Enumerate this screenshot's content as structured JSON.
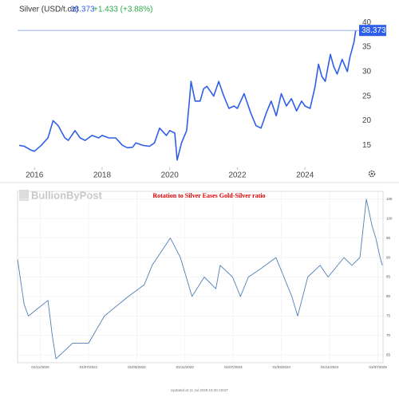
{
  "chart_data": [
    {
      "type": "line",
      "title": "Silver (USD/t.oz)",
      "change_label": "+1.433 (+3.88%)",
      "x": [
        2015.55,
        2015.7,
        2015.9,
        2016.0,
        2016.2,
        2016.4,
        2016.55,
        2016.7,
        2016.9,
        2017.0,
        2017.2,
        2017.35,
        2017.5,
        2017.7,
        2017.9,
        2018.0,
        2018.2,
        2018.4,
        2018.6,
        2018.75,
        2018.9,
        2019.0,
        2019.2,
        2019.4,
        2019.55,
        2019.7,
        2019.9,
        2020.0,
        2020.15,
        2020.22,
        2020.35,
        2020.5,
        2020.58,
        2020.63,
        2020.75,
        2020.9,
        2021.0,
        2021.1,
        2021.3,
        2021.45,
        2021.6,
        2021.75,
        2021.9,
        2022.0,
        2022.2,
        2022.4,
        2022.55,
        2022.7,
        2022.85,
        2023.0,
        2023.15,
        2023.3,
        2023.45,
        2023.6,
        2023.75,
        2023.9,
        2024.0,
        2024.15,
        2024.3,
        2024.4,
        2024.5,
        2024.6,
        2024.75,
        2024.85,
        2024.95,
        2025.1,
        2025.25,
        2025.33,
        2025.45,
        2025.5
      ],
      "series": [
        {
          "name": "Silver",
          "color": "#2f5fe8",
          "values": [
            15,
            14.8,
            14,
            13.8,
            15,
            16.5,
            20,
            19,
            16.5,
            16,
            18,
            16.5,
            16,
            17,
            16.5,
            17,
            16.5,
            16.5,
            15,
            14.5,
            14.6,
            15.5,
            15,
            14.8,
            15.5,
            18.5,
            17,
            18,
            17.5,
            12,
            15.5,
            18,
            24,
            28,
            24,
            24,
            26.5,
            27,
            25,
            28,
            25,
            22.5,
            23,
            22.5,
            25.5,
            21.5,
            19,
            18.5,
            21.5,
            24,
            21,
            25.5,
            23,
            24.5,
            22,
            24,
            23,
            22.5,
            27,
            31.5,
            29,
            28,
            33.5,
            31,
            29.5,
            32.5,
            30,
            33,
            36,
            38.373
          ]
        }
      ],
      "xlim": [
        2015.5,
        2025.6
      ],
      "xticks": [
        2016,
        2018,
        2020,
        2022,
        2024
      ],
      "ylim": [
        10.5,
        41
      ],
      "yticks": [
        15,
        20,
        25,
        30,
        35,
        40
      ],
      "grid": false
    },
    {
      "type": "line",
      "title": "Rotation to Silver Eases Gold-Silver ratio",
      "logo": "BullionByPost",
      "footer": "Updated at 11 Jul 2025 15:30 CEST",
      "x": [
        2020.52,
        2020.61,
        2020.67,
        2020.94,
        2021.0,
        2021.05,
        2021.28,
        2021.5,
        2021.72,
        2022.05,
        2022.27,
        2022.38,
        2022.63,
        2022.77,
        2022.93,
        2023.1,
        2023.26,
        2023.32,
        2023.49,
        2023.6,
        2023.71,
        2023.87,
        2024.09,
        2024.2,
        2024.31,
        2024.39,
        2024.53,
        2024.7,
        2024.81,
        2025.03,
        2025.14,
        2025.25,
        2025.31,
        2025.34,
        2025.42,
        2025.47,
        2025.53,
        2025.56
      ],
      "series": [
        {
          "name": "Gold-Silver ratio",
          "color": "#4f7fb5",
          "values": [
            89.5,
            78,
            75,
            79,
            70,
            64,
            68,
            68,
            75,
            80,
            83,
            88,
            95,
            90,
            80,
            85,
            82,
            88,
            85,
            80,
            85,
            87,
            90,
            85,
            80,
            75,
            85,
            88,
            85,
            90,
            88,
            90,
            100,
            105,
            98,
            95,
            90,
            88
          ]
        }
      ],
      "xlim": [
        2020.52,
        2025.57
      ],
      "xticks": [
        {
          "value": 2020.833,
          "label": "01/11/2020"
        },
        {
          "value": 2021.5,
          "label": "01/07/2021"
        },
        {
          "value": 2022.167,
          "label": "01/03/2022"
        },
        {
          "value": 2022.833,
          "label": "01/11/2022"
        },
        {
          "value": 2023.5,
          "label": "01/07/2023"
        },
        {
          "value": 2024.167,
          "label": "01/03/2024"
        },
        {
          "value": 2024.833,
          "label": "01/11/2024"
        },
        {
          "value": 2025.5,
          "label": "01/07/2025"
        }
      ],
      "ylim": [
        63,
        107
      ],
      "yticks": [
        65,
        70,
        75,
        80,
        85,
        90,
        95,
        100,
        105
      ],
      "grid": true
    }
  ]
}
